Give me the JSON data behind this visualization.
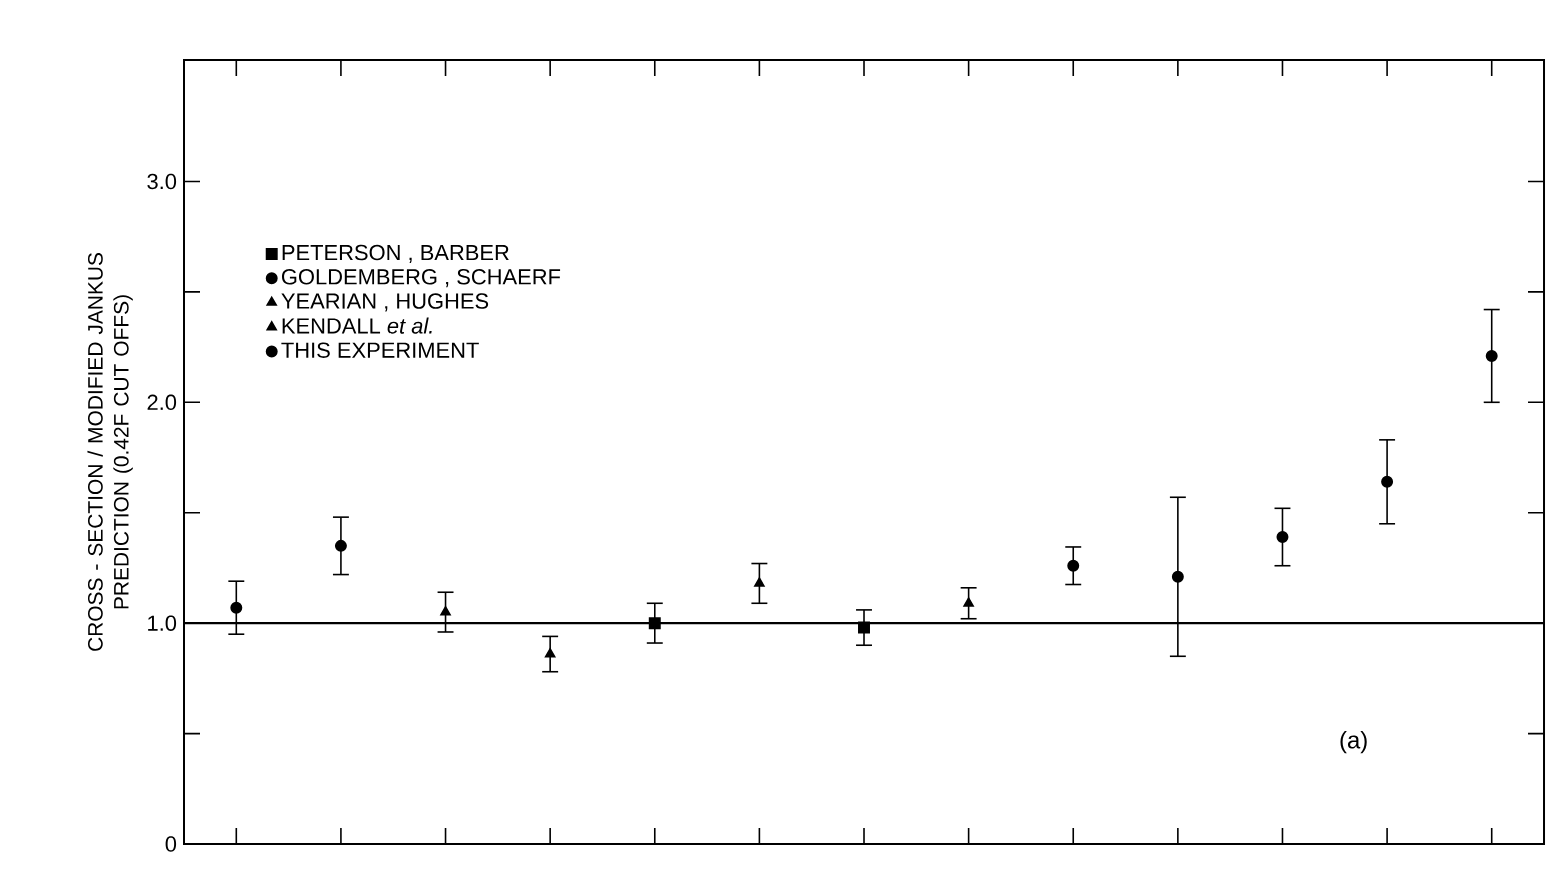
{
  "chart_data": {
    "type": "scatter",
    "ylabel": "CROSS - SECTION / MODIFIED JANKUS PREDICTION (0.42F CUT OFFS)",
    "categories": [
      null,
      null,
      null,
      null,
      null,
      null,
      null,
      null,
      null,
      null,
      null,
      null,
      null
    ],
    "ylim": [
      0,
      3.55
    ],
    "yticks": [
      0,
      {
        "value": 0.5,
        "label": null
      },
      {
        "value": 1,
        "label": "1.0"
      },
      {
        "value": 1.5,
        "label": null
      },
      {
        "value": 2,
        "label": "2.0"
      },
      {
        "value": 2.5,
        "label": null
      },
      {
        "value": 3,
        "label": "3.0"
      }
    ],
    "tick_labels": "y",
    "legend": "top left",
    "series": [
      {
        "name": "PETERSON , BARBER",
        "color": "#000000",
        "marker": "square",
        "values": [
          null,
          null,
          null,
          null,
          1.0,
          null,
          0.98,
          null,
          null,
          null,
          null,
          null,
          null
        ],
        "errors": [
          null,
          null,
          null,
          null,
          0.09,
          null,
          0.08,
          null,
          null,
          null,
          null,
          null,
          null
        ]
      },
      {
        "name": "GOLDEMBERG , SCHAERF",
        "color": "#000000",
        "marker": "circle",
        "values": [
          null,
          1.35,
          null,
          null,
          null,
          null,
          null,
          null,
          null,
          null,
          null,
          null,
          null
        ],
        "errors": [
          null,
          0.13,
          null,
          null,
          null,
          null,
          null,
          null,
          null,
          null,
          null,
          null,
          null
        ]
      },
      {
        "name": "YEARIAN , HUGHES",
        "color": "#000000",
        "marker": "triangle",
        "values": [
          null,
          null,
          1.05,
          0.86,
          null,
          null,
          null,
          null,
          null,
          null,
          null,
          null,
          null
        ],
        "errors": [
          null,
          null,
          0.09,
          0.08,
          null,
          null,
          null,
          null,
          null,
          null,
          null,
          null,
          null
        ]
      },
      {
        "name": "KENDALL *et al.*",
        "color": "#000000",
        "marker": "triangle",
        "values": [
          null,
          null,
          null,
          null,
          null,
          1.18,
          null,
          1.09,
          null,
          null,
          null,
          null,
          null
        ],
        "errors": [
          null,
          null,
          null,
          null,
          null,
          0.09,
          null,
          0.07,
          null,
          null,
          null,
          null,
          null
        ]
      },
      {
        "name": "THIS EXPERIMENT",
        "color": "#000000",
        "marker": "circle",
        "values": [
          1.07,
          null,
          null,
          null,
          null,
          null,
          null,
          null,
          1.26,
          1.21,
          1.39,
          1.64,
          2.21
        ],
        "errors": [
          0.12,
          null,
          null,
          null,
          null,
          null,
          null,
          null,
          0.085,
          [
            0.85,
            1.57
          ],
          0.13,
          0.19,
          0.21
        ]
      }
    ],
    "ref_lines": [
      {
        "axis": "y",
        "value": 1.0,
        "color": "#000000"
      }
    ],
    "annotations": [
      "(a)"
    ]
  }
}
